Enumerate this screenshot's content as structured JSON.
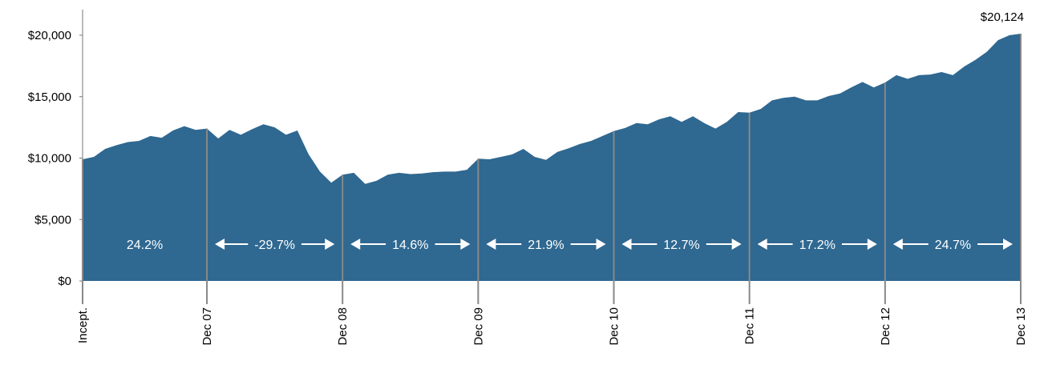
{
  "chart_data": {
    "type": "area",
    "color": "#2f6891",
    "x": [
      0,
      1,
      2,
      3,
      4,
      5,
      6,
      7,
      8,
      9,
      10,
      11,
      12,
      13,
      14,
      15,
      16,
      17,
      18,
      19,
      20,
      21,
      22,
      23,
      24,
      25,
      26,
      27,
      28,
      29,
      30,
      31,
      32,
      33,
      34,
      35,
      36,
      37,
      38,
      39,
      40,
      41,
      42,
      43,
      44,
      45,
      46,
      47,
      48,
      49,
      50,
      51,
      52,
      53,
      54,
      55,
      56,
      57,
      58,
      59,
      60,
      61,
      62,
      63,
      64,
      65,
      66,
      67,
      68,
      69,
      70,
      71,
      72,
      73,
      74,
      75,
      76,
      77,
      78,
      79,
      80,
      81,
      82,
      83
    ],
    "values": [
      9900,
      10100,
      10750,
      11050,
      11300,
      11400,
      11800,
      11650,
      12250,
      12600,
      12300,
      12400,
      11600,
      12300,
      11900,
      12350,
      12750,
      12500,
      11900,
      12250,
      10300,
      8900,
      8000,
      8650,
      8800,
      7900,
      8150,
      8650,
      8800,
      8700,
      8750,
      8850,
      8900,
      8900,
      9050,
      9950,
      9900,
      10100,
      10300,
      10750,
      10100,
      9850,
      10500,
      10800,
      11150,
      11400,
      11800,
      12200,
      12450,
      12850,
      12750,
      13150,
      13400,
      12950,
      13400,
      12850,
      12400,
      12950,
      13750,
      13700,
      14000,
      14700,
      14900,
      15000,
      14700,
      14700,
      15050,
      15250,
      15750,
      16200,
      15750,
      16150,
      16750,
      16450,
      16750,
      16800,
      17000,
      16750,
      17450,
      18000,
      18650,
      19600,
      20000,
      20124
    ],
    "end_value_label": "$20,124",
    "xlim": [
      0,
      83
    ],
    "xticks": [
      {
        "value": 0,
        "label": "Incept."
      },
      {
        "value": 11,
        "label": "Dec 07"
      },
      {
        "value": 23,
        "label": "Dec 08"
      },
      {
        "value": 35,
        "label": "Dec 09"
      },
      {
        "value": 47,
        "label": "Dec 10"
      },
      {
        "value": 59,
        "label": "Dec 11"
      },
      {
        "value": 71,
        "label": "Dec 12"
      },
      {
        "value": 83,
        "label": "Dec 13"
      }
    ],
    "ylim": [
      0,
      20000
    ],
    "yticks": [
      {
        "value": 0,
        "label": "$0"
      },
      {
        "value": 5000,
        "label": "$5,000"
      },
      {
        "value": 10000,
        "label": "$10,000"
      },
      {
        "value": 15000,
        "label": "$15,000"
      },
      {
        "value": 20000,
        "label": "$20,000"
      }
    ],
    "annotations": [
      "24.2%",
      "-29.7%",
      "14.6%",
      "21.9%",
      "12.7%",
      "17.2%",
      "24.7%"
    ]
  }
}
